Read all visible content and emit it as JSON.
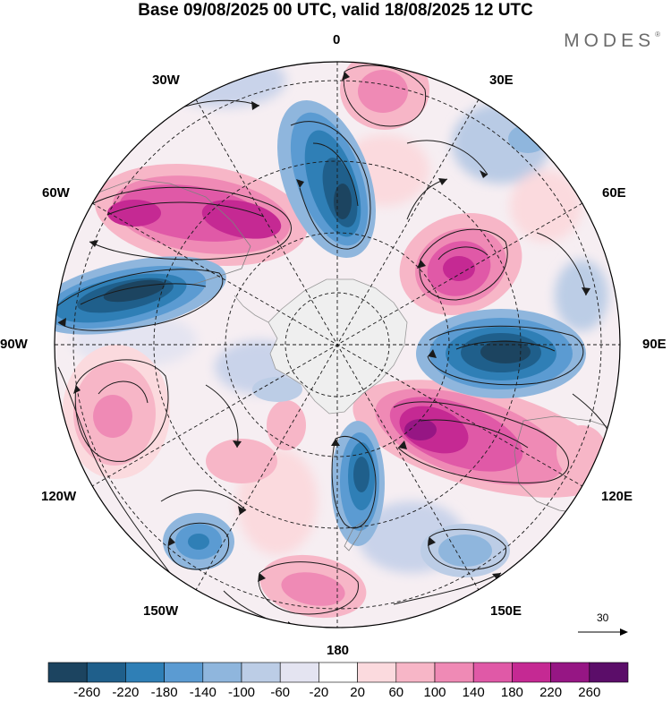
{
  "header": {
    "title": "Base 09/08/2025 00 UTC, valid 18/08/2025 12 UTC",
    "brand": "MODES",
    "brand_mark": "®"
  },
  "map": {
    "projection": "south polar stereographic",
    "longitude_labels": {
      "lon_0": "0",
      "lon_30e": "30E",
      "lon_60e": "60E",
      "lon_90e": "90E",
      "lon_120e": "120E",
      "lon_150e": "150E",
      "lon_180": "180",
      "lon_150w": "150W",
      "lon_120w": "120W",
      "lon_90w": "90W",
      "lon_60w": "60W",
      "lon_30w": "30W"
    },
    "anomaly_centers": [
      {
        "name": "south-atlantic-negative",
        "sign": "negative"
      },
      {
        "name": "south-america-positive",
        "sign": "positive"
      },
      {
        "name": "drake-passage-negative",
        "sign": "negative"
      },
      {
        "name": "indian-ocean-positive",
        "sign": "positive"
      },
      {
        "name": "south-indian-negative",
        "sign": "negative"
      },
      {
        "name": "australia-positive",
        "sign": "positive"
      },
      {
        "name": "ross-sea-negative",
        "sign": "negative"
      },
      {
        "name": "south-pacific-positive",
        "sign": "positive"
      },
      {
        "name": "tasman-negative",
        "sign": "negative"
      }
    ]
  },
  "vector_reference": {
    "value": "30"
  },
  "colorbar": {
    "labels": [
      "-260",
      "-220",
      "-180",
      "-140",
      "-100",
      "-60",
      "-20",
      "20",
      "60",
      "100",
      "140",
      "180",
      "220",
      "260"
    ],
    "colors": [
      "#1c4460",
      "#1f5f8b",
      "#2f7fb6",
      "#5b9bd2",
      "#8fb6dd",
      "#bccde6",
      "#e4e4f1",
      "#ffffff",
      "#fbdade",
      "#f7b6c7",
      "#ef8ab5",
      "#e059a7",
      "#c52993",
      "#961684",
      "#5b0d69"
    ]
  }
}
